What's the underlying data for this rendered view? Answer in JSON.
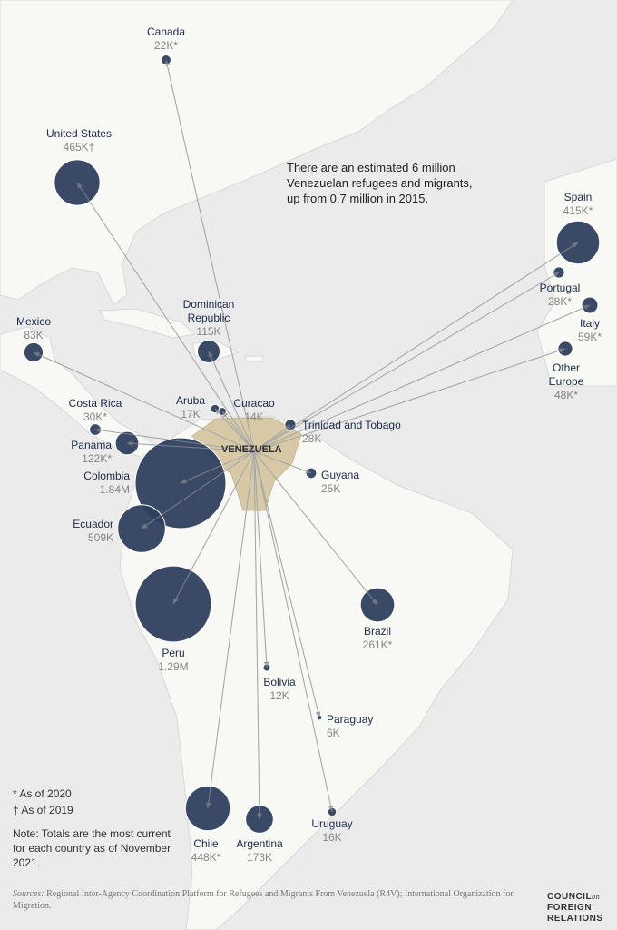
{
  "annotation": "There are an estimated 6 million Venezuelan refugees and migrants, up from 0.7 million in 2015.",
  "origin": "VENEZUELA",
  "destinations": [
    {
      "name": "Canada",
      "value": 22000,
      "value_label": "22K*"
    },
    {
      "name": "United States",
      "value": 465000,
      "value_label": "465K†"
    },
    {
      "name": "Spain",
      "value": 415000,
      "value_label": "415K*"
    },
    {
      "name": "Portugal",
      "value": 28000,
      "value_label": "28K*"
    },
    {
      "name": "Italy",
      "value": 59000,
      "value_label": "59K*"
    },
    {
      "name": "Other Europe",
      "value": 48000,
      "value_label": "48K*"
    },
    {
      "name": "Mexico",
      "value": 83000,
      "value_label": "83K"
    },
    {
      "name": "Dominican Republic",
      "value": 115000,
      "value_label": "115K"
    },
    {
      "name": "Aruba",
      "value": 17000,
      "value_label": "17K"
    },
    {
      "name": "Curacao",
      "value": 14000,
      "value_label": "14K"
    },
    {
      "name": "Trinidad and Tobago",
      "value": 28000,
      "value_label": "28K"
    },
    {
      "name": "Costa Rica",
      "value": 30000,
      "value_label": "30K*"
    },
    {
      "name": "Panama",
      "value": 122000,
      "value_label": "122K*"
    },
    {
      "name": "Colombia",
      "value": 1840000,
      "value_label": "1.84M"
    },
    {
      "name": "Guyana",
      "value": 25000,
      "value_label": "25K"
    },
    {
      "name": "Ecuador",
      "value": 509000,
      "value_label": "509K"
    },
    {
      "name": "Peru",
      "value": 1290000,
      "value_label": "1.29M"
    },
    {
      "name": "Brazil",
      "value": 261000,
      "value_label": "261K*"
    },
    {
      "name": "Bolivia",
      "value": 12000,
      "value_label": "12K"
    },
    {
      "name": "Paraguay",
      "value": 6000,
      "value_label": "6K"
    },
    {
      "name": "Uruguay",
      "value": 16000,
      "value_label": "16K"
    },
    {
      "name": "Chile",
      "value": 448000,
      "value_label": "448K*"
    },
    {
      "name": "Argentina",
      "value": 173000,
      "value_label": "173K"
    }
  ],
  "notes": [
    "* As of 2020",
    "† As of 2019",
    "Note: Totals are the most current for each country as of November 2021."
  ],
  "sources": {
    "label": "Sources:",
    "text": "Regional Inter-Agency Coordination Platform for Refugees and Migrants From Venezuela (R4V); International Organization for Migration."
  },
  "logo": {
    "line1": "COUNCIL",
    "small": "on",
    "line2": "FOREIGN",
    "line3": "RELATIONS"
  }
}
